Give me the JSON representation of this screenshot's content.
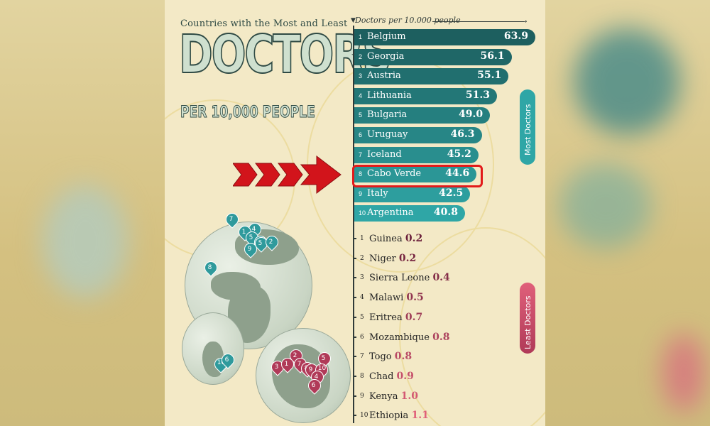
{
  "title_small": "Countries with the Most and Least",
  "title_big": "DOCTORS",
  "title_sub": "PER 10,000 PEOPLE",
  "colors": {
    "most_dark": "#1d5f5f",
    "most_light": "#2fa6a6",
    "least_dark": "#6a1f3a",
    "least_light": "#e0607a",
    "highlight": "#e21a1a",
    "arrow": "#d2141b"
  },
  "side_labels": {
    "most": "Most Doctors",
    "least": "Least Doctors"
  },
  "chart_data": {
    "type": "bar",
    "title": "Countries with the Most and Least DOCTORS PER 10,000 PEOPLE",
    "axis_label": "Doctors per 10.000 people",
    "most": [
      {
        "rank": "1",
        "country": "Belgium",
        "value": 63.9
      },
      {
        "rank": "2",
        "country": "Georgia",
        "value": 56.1
      },
      {
        "rank": "3",
        "country": "Austria",
        "value": 55.1
      },
      {
        "rank": "4",
        "country": "Lithuania",
        "value": 51.3
      },
      {
        "rank": "5",
        "country": "Bulgaria",
        "value": 49.0
      },
      {
        "rank": "6",
        "country": "Uruguay",
        "value": 46.3
      },
      {
        "rank": "7",
        "country": "Iceland",
        "value": 45.2
      },
      {
        "rank": "8",
        "country": "Cabo Verde",
        "value": 44.6
      },
      {
        "rank": "9",
        "country": "Italy",
        "value": 42.5
      },
      {
        "rank": "10",
        "country": "Argentina",
        "value": 40.8
      }
    ],
    "least": [
      {
        "rank": "1",
        "country": "Guinea",
        "value": 0.2
      },
      {
        "rank": "2",
        "country": "Niger",
        "value": 0.2
      },
      {
        "rank": "3",
        "country": "Sierra Leone",
        "value": 0.4
      },
      {
        "rank": "4",
        "country": "Malawi",
        "value": 0.5
      },
      {
        "rank": "5",
        "country": "Eritrea",
        "value": 0.7
      },
      {
        "rank": "6",
        "country": "Mozambique",
        "value": 0.8
      },
      {
        "rank": "7",
        "country": "Togo",
        "value": 0.8
      },
      {
        "rank": "8",
        "country": "Chad",
        "value": 0.9
      },
      {
        "rank": "9",
        "country": "Kenya",
        "value": 1.0
      },
      {
        "rank": "10",
        "country": "Ethiopia",
        "value": 1.1
      }
    ],
    "highlighted": "Cabo Verde"
  },
  "globe_pins": {
    "europe": [
      "7",
      "4",
      "1",
      "5",
      "3",
      "5",
      "2",
      "9"
    ],
    "atlantic": [
      "8"
    ],
    "south_america": [
      "10",
      "6"
    ],
    "africa": [
      "3",
      "2",
      "1",
      "7",
      "8",
      "9",
      "5",
      "10",
      "4",
      "6"
    ]
  }
}
